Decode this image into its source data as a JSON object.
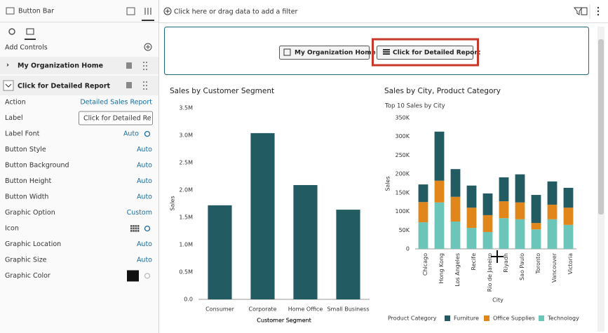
{
  "panel": {
    "title": "Button Bar",
    "add_controls": "Add Controls",
    "controls": [
      "My Organization Home",
      "Click for Detailed Report"
    ],
    "properties": [
      {
        "label": "Action",
        "value": "Detailed Sales Report"
      },
      {
        "label": "Label",
        "value": "Click for Detailed Report"
      },
      {
        "label": "Label Font",
        "value": "Auto"
      },
      {
        "label": "Button Style",
        "value": "Auto"
      },
      {
        "label": "Button Background",
        "value": "Auto"
      },
      {
        "label": "Button Height",
        "value": "Auto"
      },
      {
        "label": "Button Width",
        "value": "Auto"
      },
      {
        "label": "Graphic Option",
        "value": "Custom"
      },
      {
        "label": "Icon"
      },
      {
        "label": "Graphic Location",
        "value": "Auto"
      },
      {
        "label": "Graphic Size",
        "value": "Auto"
      },
      {
        "label": "Graphic Color"
      }
    ]
  },
  "filter_bar": {
    "placeholder": "Click here or drag data to add a filter"
  },
  "canvas": {
    "buttons": [
      "My Organization Home",
      "Click for Detailed Report"
    ]
  },
  "chart_data": [
    {
      "type": "bar",
      "title": "Sales by Customer Segment",
      "x_label": "Customer Segment",
      "y_label": "Sales",
      "categories": [
        "Consumer",
        "Corporate",
        "Home Office",
        "Small Business"
      ],
      "values": [
        1720000,
        3040000,
        2090000,
        1640000
      ],
      "color": "#235b63",
      "ylim": [
        0,
        3500000
      ],
      "yticks": [
        {
          "value": 0,
          "label": "0.0"
        },
        {
          "value": 500000,
          "label": "0.5M"
        },
        {
          "value": 1000000,
          "label": "1.0M"
        },
        {
          "value": 1500000,
          "label": "1.5M"
        },
        {
          "value": 2000000,
          "label": "2.0M"
        },
        {
          "value": 2500000,
          "label": "2.5M"
        },
        {
          "value": 3000000,
          "label": "3.0M"
        },
        {
          "value": 3500000,
          "label": "3.5M"
        }
      ],
      "grid": false
    },
    {
      "type": "stacked_bar",
      "title": "Sales by City, Product Category",
      "subtitle": "Top 10 Sales by City",
      "x_label": "City",
      "y_label": "Sales",
      "legend_title": "Product Category",
      "categories": [
        "Chicago",
        "Hong Kong",
        "Los Angeles",
        "Recife",
        "Rio de Janeiro",
        "Riyadh",
        "Sao Paulo",
        "Toronto",
        "Vancouver",
        "Victoria"
      ],
      "series": [
        {
          "name": "Technology",
          "color": "#6cc5b9",
          "values": [
            71000,
            124000,
            73000,
            56000,
            45000,
            82000,
            79000,
            52000,
            79000,
            64000
          ]
        },
        {
          "name": "Office Supplies",
          "color": "#e0861a",
          "values": [
            54000,
            58000,
            66000,
            54000,
            45000,
            45000,
            45000,
            17000,
            39000,
            46000
          ]
        },
        {
          "name": "Furniture",
          "color": "#235b63",
          "values": [
            47000,
            131000,
            74000,
            59000,
            58000,
            64000,
            75000,
            75000,
            62000,
            53000
          ]
        }
      ],
      "legend_order": [
        2,
        1,
        0
      ],
      "ylim": [
        0,
        350000
      ],
      "yticks": [
        0,
        {
          "value": 50000,
          "label": "50K"
        },
        {
          "value": 100000,
          "label": "100K"
        },
        {
          "value": 150000,
          "label": "150K"
        },
        {
          "value": 200000,
          "label": "200K"
        },
        {
          "value": 250000,
          "label": "250K"
        },
        {
          "value": 300000,
          "label": "300K"
        },
        {
          "value": 350000,
          "label": "350K"
        }
      ],
      "grid": false
    }
  ]
}
